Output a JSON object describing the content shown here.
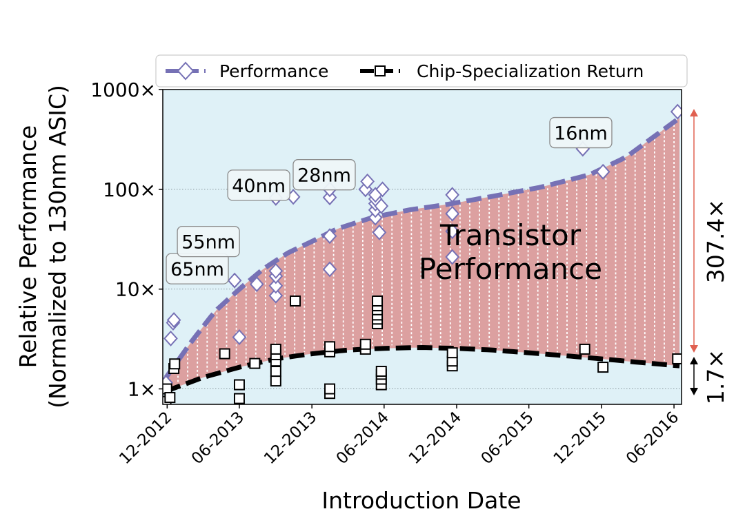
{
  "chart_data": {
    "type": "scatter",
    "title": "",
    "xlabel": "Introduction Date",
    "ylabel": "Relative Performance\n(Normalized to 130nm ASIC)",
    "yscale": "log",
    "ylim": [
      0.7,
      1000
    ],
    "xlim": [
      "2012-11-20",
      "2016-06-20"
    ],
    "x_ticks": [
      "2012-12-01",
      "2013-06-01",
      "2013-12-01",
      "2014-06-01",
      "2014-12-01",
      "2015-06-01",
      "2015-12-01",
      "2016-06-01"
    ],
    "x_tick_labels": [
      "12-2012",
      "06-2013",
      "12-2013",
      "06-2014",
      "12-2014",
      "06-2015",
      "12-2015",
      "06-2016"
    ],
    "y_ticks": [
      1,
      10,
      100,
      1000
    ],
    "y_tick_labels": [
      "1×",
      "10×",
      "100×",
      "1000×"
    ],
    "grid": "horizontal-dotted",
    "legend_position": "top",
    "colors": {
      "background": "#dff1f7",
      "performance": "#7671b5",
      "return": "#000000",
      "fill": "#dca0a0",
      "arrow_red": "#e06050"
    },
    "series": [
      {
        "name": "Performance",
        "marker": "diamond",
        "points": [
          [
            "2012-11-28",
            1.15
          ],
          [
            "2012-12-10",
            3.2
          ],
          [
            "2012-12-16",
            4.6
          ],
          [
            "2012-12-18",
            4.9
          ],
          [
            "2013-05-20",
            12.2
          ],
          [
            "2013-06-01",
            3.3
          ],
          [
            "2013-07-15",
            11.2
          ],
          [
            "2013-09-01",
            8.6
          ],
          [
            "2013-09-01",
            10.8
          ],
          [
            "2013-09-01",
            13.5
          ],
          [
            "2013-09-01",
            15.2
          ],
          [
            "2013-09-01",
            82
          ],
          [
            "2013-10-15",
            84
          ],
          [
            "2014-01-15",
            15.8
          ],
          [
            "2014-01-15",
            34
          ],
          [
            "2014-01-15",
            83
          ],
          [
            "2014-01-15",
            100
          ],
          [
            "2014-04-15",
            100
          ],
          [
            "2014-04-20",
            120
          ],
          [
            "2014-05-10",
            52
          ],
          [
            "2014-05-10",
            62
          ],
          [
            "2014-05-10",
            72
          ],
          [
            "2014-05-10",
            80
          ],
          [
            "2014-05-10",
            88
          ],
          [
            "2014-05-20",
            37
          ],
          [
            "2014-05-25",
            68
          ],
          [
            "2014-05-28",
            100
          ],
          [
            "2014-11-20",
            21
          ],
          [
            "2014-11-20",
            38
          ],
          [
            "2014-11-20",
            57
          ],
          [
            "2014-11-20",
            88
          ],
          [
            "2015-10-15",
            255
          ],
          [
            "2015-12-05",
            150
          ],
          [
            "2016-06-10",
            600
          ]
        ]
      },
      {
        "name": "Chip-Specialization Return",
        "marker": "square",
        "points": [
          [
            "2012-11-28",
            0.75
          ],
          [
            "2012-11-30",
            1.0
          ],
          [
            "2012-12-08",
            0.82
          ],
          [
            "2012-12-18",
            1.6
          ],
          [
            "2012-12-20",
            1.78
          ],
          [
            "2013-04-25",
            2.25
          ],
          [
            "2013-06-01",
            0.8
          ],
          [
            "2013-06-01",
            1.1
          ],
          [
            "2013-07-10",
            1.8
          ],
          [
            "2013-09-01",
            1.2
          ],
          [
            "2013-09-01",
            1.5
          ],
          [
            "2013-09-01",
            1.9
          ],
          [
            "2013-09-01",
            2.2
          ],
          [
            "2013-09-01",
            2.5
          ],
          [
            "2013-10-20",
            7.6
          ],
          [
            "2014-01-15",
            0.9
          ],
          [
            "2014-01-15",
            1.0
          ],
          [
            "2014-01-15",
            2.35
          ],
          [
            "2014-01-15",
            2.65
          ],
          [
            "2014-04-15",
            2.5
          ],
          [
            "2014-04-15",
            2.8
          ],
          [
            "2014-05-15",
            4.5
          ],
          [
            "2014-05-15",
            5.0
          ],
          [
            "2014-05-15",
            5.5
          ],
          [
            "2014-05-15",
            6.2
          ],
          [
            "2014-05-15",
            6.8
          ],
          [
            "2014-05-15",
            7.6
          ],
          [
            "2014-05-25",
            1.1
          ],
          [
            "2014-05-25",
            1.25
          ],
          [
            "2014-05-25",
            1.4
          ],
          [
            "2014-05-25",
            1.5
          ],
          [
            "2014-11-20",
            1.7
          ],
          [
            "2014-11-20",
            1.9
          ],
          [
            "2014-11-20",
            2.3
          ],
          [
            "2015-10-20",
            2.5
          ],
          [
            "2015-12-05",
            1.65
          ],
          [
            "2016-06-10",
            2.0
          ]
        ]
      }
    ],
    "trend_performance": [
      [
        "2012-11-28",
        1.3
      ],
      [
        "2013-02-01",
        3.0
      ],
      [
        "2013-04-01",
        6.0
      ],
      [
        "2013-06-01",
        10.0
      ],
      [
        "2013-08-01",
        16.0
      ],
      [
        "2013-10-01",
        23.0
      ],
      [
        "2013-12-01",
        30.0
      ],
      [
        "2014-02-01",
        40.0
      ],
      [
        "2014-05-01",
        52.0
      ],
      [
        "2014-08-01",
        62.0
      ],
      [
        "2014-11-01",
        70.0
      ],
      [
        "2015-03-01",
        85.0
      ],
      [
        "2015-07-01",
        105.0
      ],
      [
        "2015-11-01",
        140.0
      ],
      [
        "2016-02-01",
        210.0
      ],
      [
        "2016-06-15",
        520.0
      ]
    ],
    "trend_return": [
      [
        "2012-11-28",
        0.95
      ],
      [
        "2013-03-01",
        1.3
      ],
      [
        "2013-06-01",
        1.65
      ],
      [
        "2013-09-01",
        2.0
      ],
      [
        "2013-12-01",
        2.25
      ],
      [
        "2014-03-01",
        2.45
      ],
      [
        "2014-06-01",
        2.55
      ],
      [
        "2014-09-01",
        2.6
      ],
      [
        "2014-12-01",
        2.55
      ],
      [
        "2015-03-01",
        2.45
      ],
      [
        "2015-06-01",
        2.3
      ],
      [
        "2015-09-01",
        2.15
      ],
      [
        "2015-12-01",
        2.0
      ],
      [
        "2016-03-01",
        1.85
      ],
      [
        "2016-06-15",
        1.7
      ]
    ],
    "annotations": [
      {
        "text": "65nm",
        "x": "2013-02-15",
        "y": 16
      },
      {
        "text": "55nm",
        "x": "2013-03-15",
        "y": 30
      },
      {
        "text": "40nm",
        "x": "2013-07-20",
        "y": 110
      },
      {
        "text": "28nm",
        "x": "2014-01-01",
        "y": 140
      },
      {
        "text": "16nm",
        "x": "2015-10-10",
        "y": 370
      }
    ],
    "band_label": [
      "Transistor",
      "Performance"
    ],
    "right_labels": {
      "gap": "307.4×",
      "return": "1.7×"
    }
  }
}
